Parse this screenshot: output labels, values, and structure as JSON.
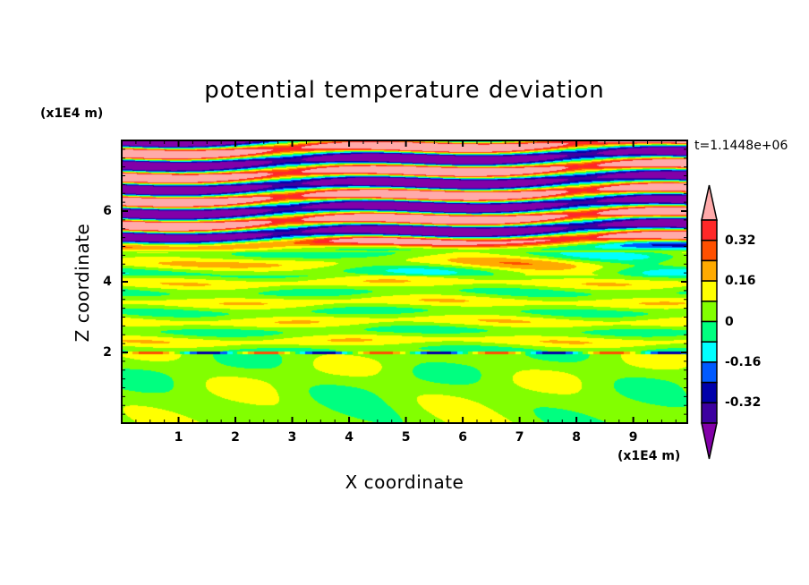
{
  "chart_data": {
    "type": "heatmap",
    "title": "potential temperature deviation",
    "xlabel": "X coordinate",
    "ylabel": "Z coordinate",
    "x_unit": "(x1E4 m)",
    "y_unit": "(x1E4 m)",
    "time_label": "t=1.1448e+06",
    "xlim": [
      0,
      9.95
    ],
    "ylim": [
      0,
      8
    ],
    "x_ticks": [
      "1",
      "2",
      "3",
      "4",
      "5",
      "6",
      "7",
      "8",
      "9"
    ],
    "y_ticks": [
      "2",
      "4",
      "6"
    ],
    "levels": [
      -0.4,
      -0.32,
      -0.24,
      -0.16,
      -0.08,
      0,
      0.08,
      0.16,
      0.24,
      0.32,
      0.4
    ],
    "colorbar_labels": [
      "0.32",
      "0.16",
      "0",
      "-0.16",
      "-0.32"
    ],
    "colorbar_label_values": [
      0.32,
      0.16,
      0,
      -0.16,
      -0.32
    ],
    "colors": [
      "#8200a8",
      "#3c00a0",
      "#0000aa",
      "#005aff",
      "#00ffff",
      "#00ff80",
      "#82ff00",
      "#ffff00",
      "#ffaa00",
      "#ff5000",
      "#ff2828",
      "#ffaaaa"
    ]
  }
}
